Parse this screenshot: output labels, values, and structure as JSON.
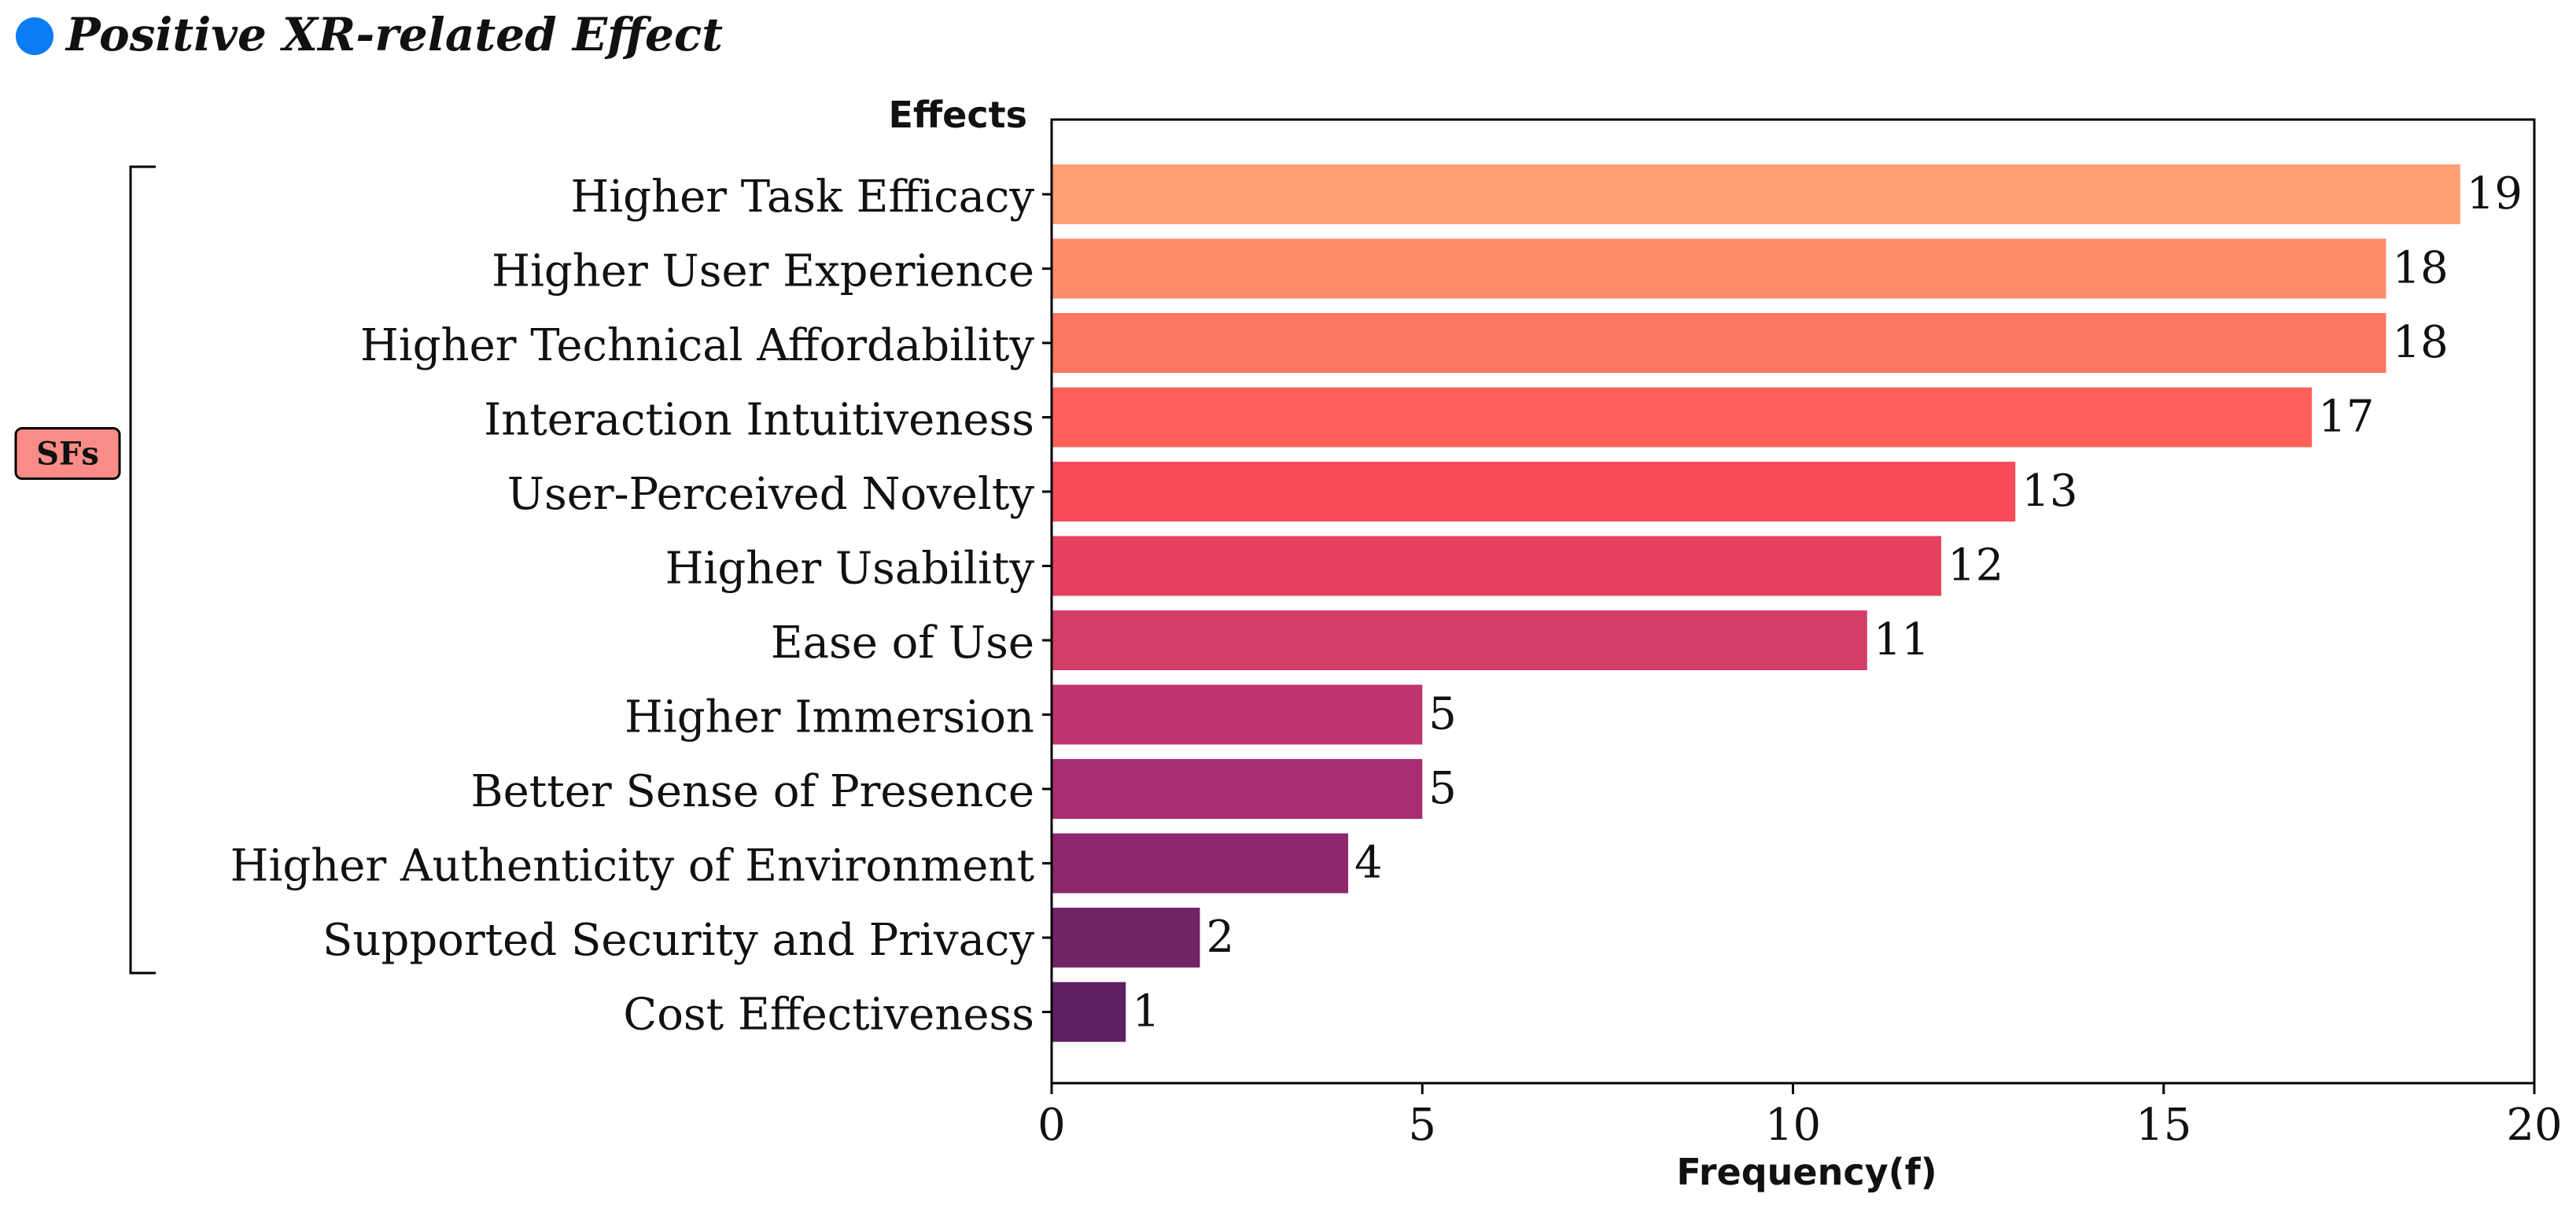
{
  "chart_data": {
    "type": "bar",
    "orientation": "horizontal",
    "title": "Positive XR-related Effect",
    "title_marker_color": "#0a7cf4",
    "ylabel": "Effects",
    "xlabel": "Frequency(f)",
    "xlim": [
      0,
      20
    ],
    "xticks": [
      0,
      5,
      10,
      15,
      20
    ],
    "categories": [
      "Higher Task Efficacy",
      "Higher User Experience",
      "Higher Technical Affordability",
      "Interaction Intuitiveness",
      "User-Perceived Novelty",
      "Higher Usability",
      "Ease of Use",
      "Higher Immersion",
      "Better Sense of Presence",
      "Higher Authenticity of Environment",
      "Supported Security and Privacy",
      "Cost Effectiveness"
    ],
    "values": [
      19,
      18,
      18,
      17,
      13,
      12,
      11,
      5,
      5,
      4,
      2,
      1
    ],
    "colors": [
      "#ffa074",
      "#ff8b6a",
      "#ff7760",
      "#fe6059",
      "#f84c5a",
      "#e6415e",
      "#d43c68",
      "#be346e",
      "#a82d70",
      "#8d276e",
      "#722467",
      "#5f1f63"
    ],
    "bracket": {
      "label": "SFs",
      "fill": "#f98c86",
      "first_category": 0,
      "last_category": 10
    }
  }
}
